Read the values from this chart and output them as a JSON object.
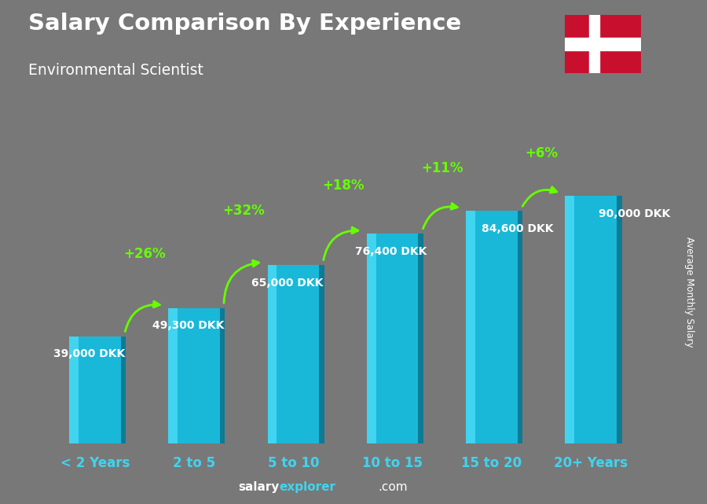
{
  "title": "Salary Comparison By Experience",
  "subtitle": "Environmental Scientist",
  "categories": [
    "< 2 Years",
    "2 to 5",
    "5 to 10",
    "10 to 15",
    "15 to 20",
    "20+ Years"
  ],
  "values": [
    39000,
    49300,
    65000,
    76400,
    84600,
    90000
  ],
  "labels": [
    "39,000 DKK",
    "49,300 DKK",
    "65,000 DKK",
    "76,400 DKK",
    "84,600 DKK",
    "90,000 DKK"
  ],
  "pct_changes": [
    "+26%",
    "+32%",
    "+18%",
    "+11%",
    "+6%"
  ],
  "bar_color_face": "#1ab8d8",
  "bar_color_light": "#40d4f0",
  "bar_color_dark": "#0d7a96",
  "bg_color": "#787878",
  "title_color": "#ffffff",
  "subtitle_color": "#ffffff",
  "label_color": "#ffffff",
  "pct_color": "#66ff00",
  "xlabel_color": "#40d4f0",
  "ylabel": "Average Monthly Salary",
  "ylim": [
    0,
    110000
  ],
  "bar_width": 0.52,
  "footer_salary_color": "#ffffff",
  "footer_explorer_color": "#40d4f0",
  "flag_red": "#c8102e",
  "flag_white": "#ffffff"
}
